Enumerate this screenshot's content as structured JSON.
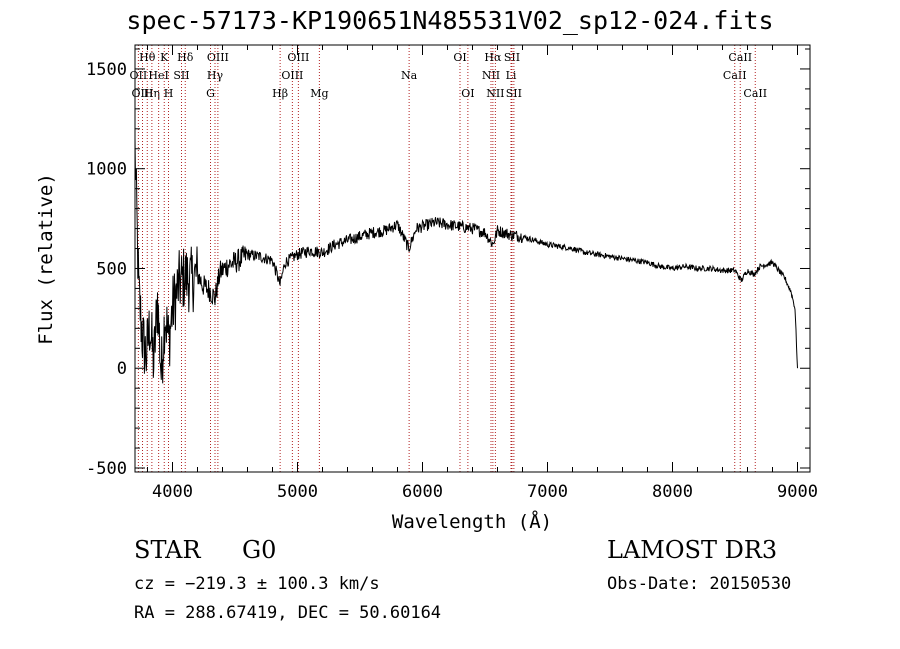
{
  "header": {
    "title": "spec-57173-KP190651N485531V02_sp12-024.fits"
  },
  "info": {
    "object_class": "STAR",
    "subclass": "G0",
    "survey": "LAMOST DR3",
    "cz": "cz = −219.3 ± 100.3 km/s",
    "obs_date": "Obs-Date: 20150530",
    "radec": "RA = 288.67419, DEC =  50.60164"
  },
  "colors": {
    "line": "#000000",
    "marker": "#b22222",
    "background": "#ffffff"
  },
  "chart_data": {
    "type": "line",
    "title": "spec-57173-KP190651N485531V02_sp12-024.fits",
    "xlabel": "Wavelength (Å)",
    "ylabel": "Flux (relative)",
    "xlim": [
      3700,
      9100
    ],
    "ylim": [
      -520,
      1620
    ],
    "x_ticks": [
      4000,
      5000,
      6000,
      7000,
      8000,
      9000
    ],
    "y_ticks": [
      -500,
      0,
      500,
      1000,
      1500
    ],
    "series": [
      {
        "name": "spectrum",
        "x": [
          3700,
          3730,
          3760,
          3790,
          3820,
          3850,
          3880,
          3910,
          3940,
          3970,
          4000,
          4050,
          4100,
          4150,
          4200,
          4250,
          4300,
          4340,
          4380,
          4450,
          4500,
          4600,
          4700,
          4800,
          4861,
          4900,
          5000,
          5100,
          5200,
          5300,
          5400,
          5500,
          5600,
          5700,
          5800,
          5890,
          5950,
          6000,
          6100,
          6200,
          6300,
          6400,
          6500,
          6563,
          6600,
          6700,
          6800,
          6900,
          7000,
          7100,
          7200,
          7300,
          7400,
          7500,
          7600,
          7700,
          7800,
          7900,
          8000,
          8100,
          8200,
          8300,
          8400,
          8500,
          8550,
          8600,
          8650,
          8700,
          8750,
          8800,
          8850,
          8900,
          8950,
          8980,
          9000
        ],
        "y": [
          1100,
          380,
          150,
          60,
          220,
          20,
          350,
          -30,
          280,
          130,
          300,
          420,
          460,
          440,
          470,
          410,
          390,
          350,
          480,
          520,
          530,
          570,
          560,
          540,
          420,
          530,
          570,
          590,
          580,
          620,
          640,
          660,
          680,
          690,
          720,
          600,
          700,
          710,
          730,
          720,
          710,
          700,
          680,
          620,
          690,
          670,
          660,
          640,
          620,
          610,
          600,
          580,
          570,
          560,
          550,
          540,
          530,
          510,
          500,
          510,
          500,
          500,
          490,
          490,
          440,
          490,
          470,
          510,
          520,
          530,
          490,
          450,
          380,
          300,
          0
        ]
      }
    ],
    "line_markers": [
      {
        "label": "OII",
        "wavelength": 3727,
        "row": 1
      },
      {
        "label": "OIII",
        "wavelength": 3760,
        "row": 2
      },
      {
        "label": "Hθ",
        "wavelength": 3798,
        "row": 0
      },
      {
        "label": "Hη",
        "wavelength": 3835,
        "row": 2
      },
      {
        "label": "HeI",
        "wavelength": 3889,
        "row": 1
      },
      {
        "label": "K",
        "wavelength": 3934,
        "row": 0
      },
      {
        "label": "H",
        "wavelength": 3968,
        "row": 2
      },
      {
        "label": "SII",
        "wavelength": 4072,
        "row": 1
      },
      {
        "label": "Hδ",
        "wavelength": 4102,
        "row": 0
      },
      {
        "label": "OIII",
        "wavelength": 4363,
        "row": 0
      },
      {
        "label": "Hγ",
        "wavelength": 4340,
        "row": 1
      },
      {
        "label": "G",
        "wavelength": 4304,
        "row": 2
      },
      {
        "label": "Hβ",
        "wavelength": 4861,
        "row": 2
      },
      {
        "label": "OIII",
        "wavelength": 4959,
        "row": 1
      },
      {
        "label": "OIII",
        "wavelength": 5007,
        "row": 0
      },
      {
        "label": "Mg",
        "wavelength": 5175,
        "row": 2
      },
      {
        "label": "Na",
        "wavelength": 5893,
        "row": 1
      },
      {
        "label": "OI",
        "wavelength": 6300,
        "row": 0
      },
      {
        "label": "OI",
        "wavelength": 6363,
        "row": 2
      },
      {
        "label": "NII",
        "wavelength": 6548,
        "row": 1
      },
      {
        "label": "Hα",
        "wavelength": 6563,
        "row": 0
      },
      {
        "label": "NII",
        "wavelength": 6583,
        "row": 2
      },
      {
        "label": "Li",
        "wavelength": 6708,
        "row": 1
      },
      {
        "label": "SII",
        "wavelength": 6716,
        "row": 0
      },
      {
        "label": "SII",
        "wavelength": 6731,
        "row": 2
      },
      {
        "label": "CaII",
        "wavelength": 8498,
        "row": 1
      },
      {
        "label": "CaII",
        "wavelength": 8542,
        "row": 0
      },
      {
        "label": "CaII",
        "wavelength": 8662,
        "row": 2
      }
    ]
  }
}
